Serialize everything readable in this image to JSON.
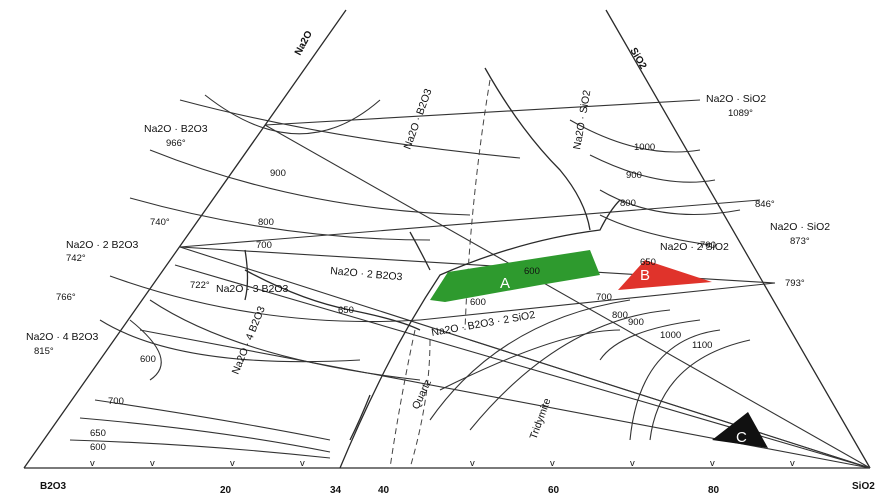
{
  "components": {
    "apex_top": "Na2O",
    "bottom_left": "B2O3",
    "bottom_right": "SiO2",
    "right_edge": "SiO2"
  },
  "axis_ticks": [
    "20",
    "34",
    "40",
    "60",
    "80"
  ],
  "compounds": {
    "nb": "Na2O · B2O3",
    "nb_t": "966°",
    "ns": "Na2O · SiO2",
    "ns_t": "1089°",
    "n2b": "Na2O · 2 B2O3",
    "n2b_t": "742°",
    "n3b": "Na2O · 3 B2O3",
    "n4b": "Na2O · 4 B2O3",
    "n4b_t": "815°",
    "ns2": "Na2O · 2 SiO2",
    "ns2_r": "Na2O · SiO2",
    "ns2_r_t": "873°",
    "nb2s": "Na2O · B2O3 · 2 SiO2",
    "ns_line": "Na2O · SiO2",
    "nb_line": "Na2O · B2O3",
    "n4b_line": "Na2O · 4 B2O3",
    "n2b_field": "Na2O · 2 B2O3"
  },
  "point_temps": [
    "740°",
    "846°",
    "793°",
    "766°",
    "722°"
  ],
  "isotherms": [
    "900",
    "800",
    "700",
    "1000",
    "900",
    "800",
    "700",
    "600",
    "650",
    "700",
    "800",
    "900",
    "1000",
    "1100",
    "600",
    "700",
    "650",
    "600",
    "600",
    "650"
  ],
  "phases": {
    "quartz": "Quartz",
    "tridymite": "Tridymite"
  },
  "regions": {
    "A": {
      "label": "A",
      "color": "#2e9a2e"
    },
    "B": {
      "label": "B",
      "color": "#e0332b"
    },
    "C": {
      "label": "C",
      "color": "#111111"
    }
  }
}
